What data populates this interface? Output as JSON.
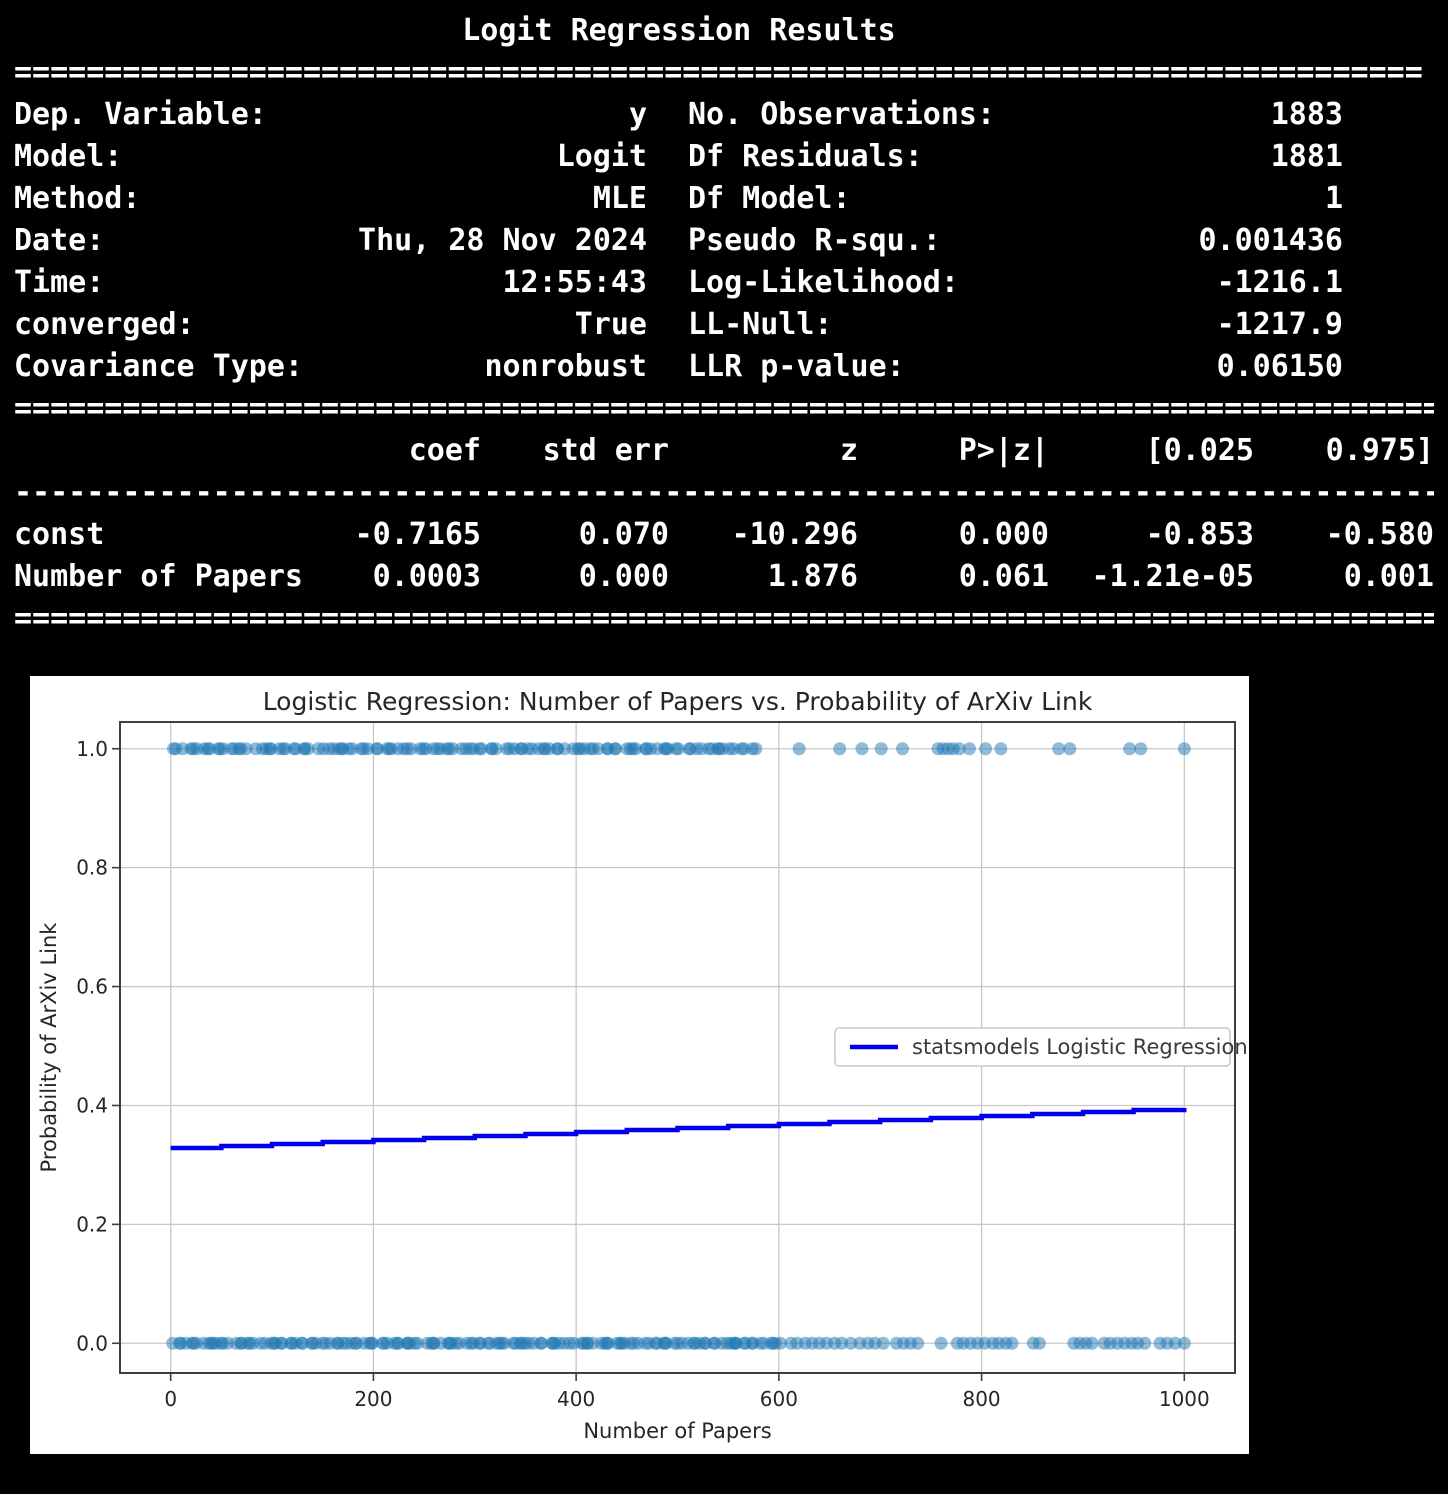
{
  "summary": {
    "title": "Logit Regression Results",
    "rules": {
      "top": {
        "ch": "=",
        "n": 78
      },
      "mid": {
        "ch": "=",
        "n": 84
      },
      "dash": {
        "ch": "-",
        "n": 84
      },
      "bottom": {
        "ch": "=",
        "n": 84
      }
    },
    "info_rows": [
      {
        "l1": "Dep. Variable:",
        "v1": "y",
        "l2": "No. Observations:",
        "v2": "1883"
      },
      {
        "l1": "Model:",
        "v1": "Logit",
        "l2": "Df Residuals:",
        "v2": "1881"
      },
      {
        "l1": "Method:",
        "v1": "MLE",
        "l2": "Df Model:",
        "v2": "1"
      },
      {
        "l1": "Date:",
        "v1": "Thu, 28 Nov 2024",
        "l2": "Pseudo R-squ.:",
        "v2": "0.001436"
      },
      {
        "l1": "Time:",
        "v1": "12:55:43",
        "l2": "Log-Likelihood:",
        "v2": "-1216.1"
      },
      {
        "l1": "converged:",
        "v1": "True",
        "l2": "LL-Null:",
        "v2": "-1217.9"
      },
      {
        "l1": "Covariance Type:",
        "v1": "nonrobust",
        "l2": "LLR p-value:",
        "v2": "0.06150"
      }
    ],
    "coef_table": {
      "headers": [
        "coef",
        "std err",
        "z",
        "P>|z|",
        "[0.025",
        "0.975]"
      ],
      "rows": [
        {
          "name": "const",
          "values": [
            "-0.7165",
            "0.070",
            "-10.296",
            "0.000",
            "-0.853",
            "-0.580"
          ]
        },
        {
          "name": "Number of Papers",
          "values": [
            "0.0003",
            "0.000",
            "1.876",
            "0.061",
            "-1.21e-05",
            "0.001"
          ]
        }
      ]
    }
  },
  "chart_data": {
    "type": "scatter",
    "title": "Logistic Regression: Number of Papers vs. Probability of ArXiv Link",
    "xlabel": "Number of Papers",
    "ylabel": "Probability of ArXiv Link",
    "xlim": [
      -50,
      1050
    ],
    "ylim": [
      -0.05,
      1.045
    ],
    "x_ticks": [
      0,
      200,
      400,
      600,
      800,
      1000
    ],
    "y_ticks": [
      0.0,
      0.2,
      0.4,
      0.6,
      0.8,
      1.0
    ],
    "y_tick_labels": [
      "0.0",
      "0.2",
      "0.4",
      "0.6",
      "0.8",
      "1.0"
    ],
    "grid": true,
    "colors": {
      "dot": "#1f77b4",
      "line": "#0000ee",
      "grid": "#c8c8c8",
      "spine": "#3f3f3f",
      "text": "#262626",
      "legend_border": "#c9c9c9"
    },
    "scatter": {
      "opacity": 0.5,
      "radius": 6.5,
      "jitter": 4,
      "seed": 7,
      "strips": [
        {
          "y": 1,
          "dense": {
            "from": 2,
            "to": 575,
            "count": 122
          },
          "xs": [
            620,
            660,
            682,
            701,
            722,
            757,
            762,
            767,
            772,
            778,
            788,
            804,
            819,
            876,
            887,
            946,
            957,
            1000
          ]
        },
        {
          "y": 0,
          "dense": {
            "from": 2,
            "to": 602,
            "count": 148
          },
          "xs": [
            612,
            618,
            626,
            633,
            640,
            647,
            655,
            662,
            671,
            680,
            688,
            695,
            703,
            716,
            723,
            730,
            737,
            760,
            776,
            782,
            789,
            796,
            803,
            811,
            817,
            824,
            830,
            851,
            857,
            891,
            897,
            903,
            909,
            921,
            927,
            934,
            941,
            948,
            954,
            961,
            976,
            983,
            991,
            1000
          ]
        }
      ]
    },
    "regression_line": {
      "label": "statsmodels Logistic Regression",
      "model": "logit",
      "intercept": -0.7165,
      "slope": 0.0003,
      "points": [
        [
          0,
          0.3282
        ],
        [
          50,
          0.3315
        ],
        [
          100,
          0.3348
        ],
        [
          150,
          0.3382
        ],
        [
          200,
          0.3415
        ],
        [
          250,
          0.3449
        ],
        [
          300,
          0.3483
        ],
        [
          350,
          0.3517
        ],
        [
          400,
          0.3551
        ],
        [
          450,
          0.3586
        ],
        [
          500,
          0.3621
        ],
        [
          550,
          0.3656
        ],
        [
          600,
          0.369
        ],
        [
          650,
          0.3725
        ],
        [
          700,
          0.376
        ],
        [
          750,
          0.3796
        ],
        [
          800,
          0.3831
        ],
        [
          850,
          0.3866
        ],
        [
          900,
          0.3902
        ],
        [
          950,
          0.3938
        ],
        [
          1000,
          0.3974
        ]
      ]
    },
    "legend": {
      "label": "statsmodels Logistic Regression",
      "position": "center right"
    }
  }
}
